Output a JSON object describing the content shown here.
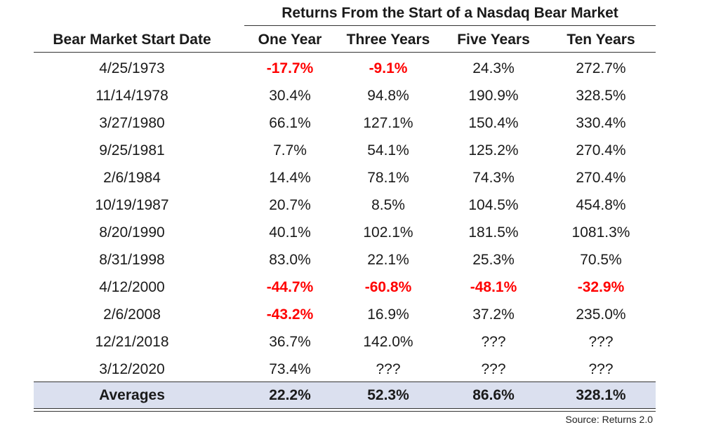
{
  "title": "Returns From the Start of a Nasdaq Bear Market",
  "columns": [
    "Bear Market Start Date",
    "One Year",
    "Three Years",
    "Five Years",
    "Ten Years"
  ],
  "rows": [
    [
      "4/25/1973",
      "-17.7%",
      "-9.1%",
      "24.3%",
      "272.7%"
    ],
    [
      "11/14/1978",
      "30.4%",
      "94.8%",
      "190.9%",
      "328.5%"
    ],
    [
      "3/27/1980",
      "66.1%",
      "127.1%",
      "150.4%",
      "330.4%"
    ],
    [
      "9/25/1981",
      "7.7%",
      "54.1%",
      "125.2%",
      "270.4%"
    ],
    [
      "2/6/1984",
      "14.4%",
      "78.1%",
      "74.3%",
      "270.4%"
    ],
    [
      "10/19/1987",
      "20.7%",
      "8.5%",
      "104.5%",
      "454.8%"
    ],
    [
      "8/20/1990",
      "40.1%",
      "102.1%",
      "181.5%",
      "1081.3%"
    ],
    [
      "8/31/1998",
      "83.0%",
      "22.1%",
      "25.3%",
      "70.5%"
    ],
    [
      "4/12/2000",
      "-44.7%",
      "-60.8%",
      "-48.1%",
      "-32.9%"
    ],
    [
      "2/6/2008",
      "-43.2%",
      "16.9%",
      "37.2%",
      "235.0%"
    ],
    [
      "12/21/2018",
      "36.7%",
      "142.0%",
      "???",
      "???"
    ],
    [
      "3/12/2020",
      "73.4%",
      "???",
      "???",
      "???"
    ]
  ],
  "averages": [
    "Averages",
    "22.2%",
    "52.3%",
    "86.6%",
    "328.1%"
  ],
  "source": "Source: Returns 2.0",
  "colors": {
    "negative": "#ff0000",
    "averages_bg": "#dbe0ef"
  }
}
